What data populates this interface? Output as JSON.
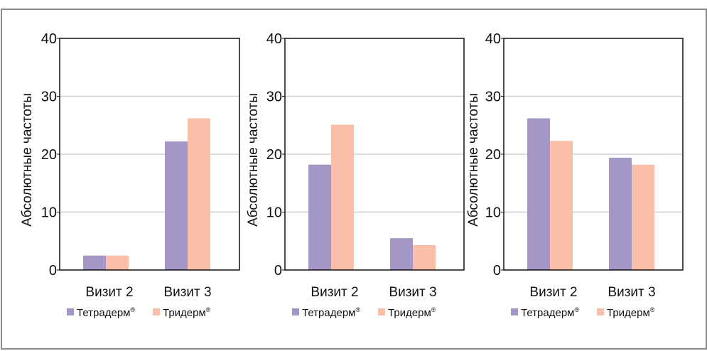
{
  "colors": {
    "tetraderm": "#A596C8",
    "triderm": "#F9BFA8",
    "gridline": "#D0D0D0",
    "axis": "#111111",
    "frame": "#8A8A8A"
  },
  "chart_data": [
    {
      "type": "bar",
      "title": "",
      "xlabel": "",
      "ylabel": "Абсолютные частоты",
      "ylim": [
        0,
        40
      ],
      "yticks": [
        "0",
        "10",
        "20",
        "30",
        "40"
      ],
      "grid": true,
      "legend_position": "bottom",
      "categories": [
        "Визит 2",
        "Визит 3"
      ],
      "series": [
        {
          "name": "Тетрадерм®",
          "values": [
            2.5,
            22.2
          ]
        },
        {
          "name": "Тридерм®",
          "values": [
            2.5,
            26.2
          ]
        }
      ]
    },
    {
      "type": "bar",
      "title": "",
      "xlabel": "",
      "ylabel": "Абсолютные частоты",
      "ylim": [
        0,
        40
      ],
      "yticks": [
        "0",
        "10",
        "20",
        "30",
        "40"
      ],
      "grid": true,
      "legend_position": "bottom",
      "categories": [
        "Визит 2",
        "Визит 3"
      ],
      "series": [
        {
          "name": "Тетрадерм®",
          "values": [
            18.2,
            5.5
          ]
        },
        {
          "name": "Тридерм®",
          "values": [
            25.1,
            4.3
          ]
        }
      ]
    },
    {
      "type": "bar",
      "title": "",
      "xlabel": "",
      "ylabel": "Абсолютные частоты",
      "ylim": [
        0,
        40
      ],
      "yticks": [
        "0",
        "10",
        "20",
        "30",
        "40"
      ],
      "grid": true,
      "legend_position": "bottom",
      "categories": [
        "Визит 2",
        "Визит 3"
      ],
      "series": [
        {
          "name": "Тетрадерм®",
          "values": [
            26.2,
            19.4
          ]
        },
        {
          "name": "Тридерм®",
          "values": [
            22.3,
            18.2
          ]
        }
      ]
    }
  ]
}
